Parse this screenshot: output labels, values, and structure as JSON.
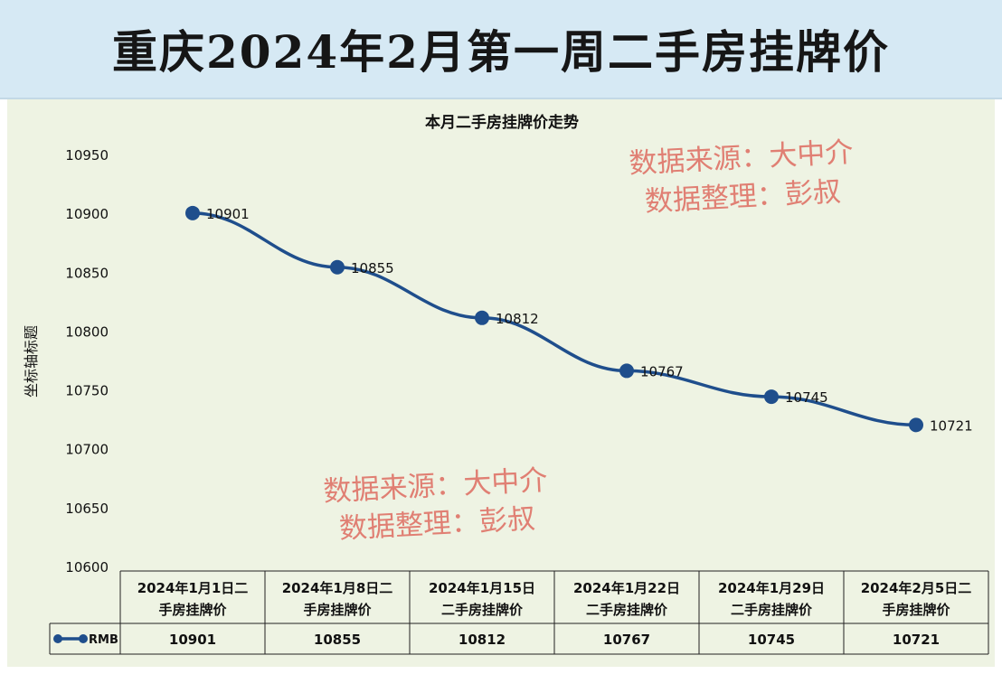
{
  "header": {
    "title": "重庆2024年2月第一周二手房挂牌价"
  },
  "watermark": {
    "line1": "数据来源：大中介",
    "line2": "数据整理：彭叔"
  },
  "chart_data": {
    "type": "line",
    "title": "本月二手房挂牌价走势",
    "ylabel": "坐标轴标题",
    "ylim": [
      10600,
      10950
    ],
    "yticks": [
      10950,
      10900,
      10850,
      10800,
      10750,
      10700,
      10650,
      10600
    ],
    "categories": [
      [
        "2024年1月1日二",
        "手房挂牌价"
      ],
      [
        "2024年1月8日二",
        "手房挂牌价"
      ],
      [
        "2024年1月15日",
        "二手房挂牌价"
      ],
      [
        "2024年1月22日",
        "二手房挂牌价"
      ],
      [
        "2024年1月29日",
        "二手房挂牌价"
      ],
      [
        "2024年2月5日二",
        "手房挂牌价"
      ]
    ],
    "series": [
      {
        "name": "RMB",
        "values": [
          10901,
          10855,
          10812,
          10767,
          10745,
          10721
        ],
        "color": "#1f4e8c"
      }
    ],
    "grid": false,
    "data_table": true
  }
}
